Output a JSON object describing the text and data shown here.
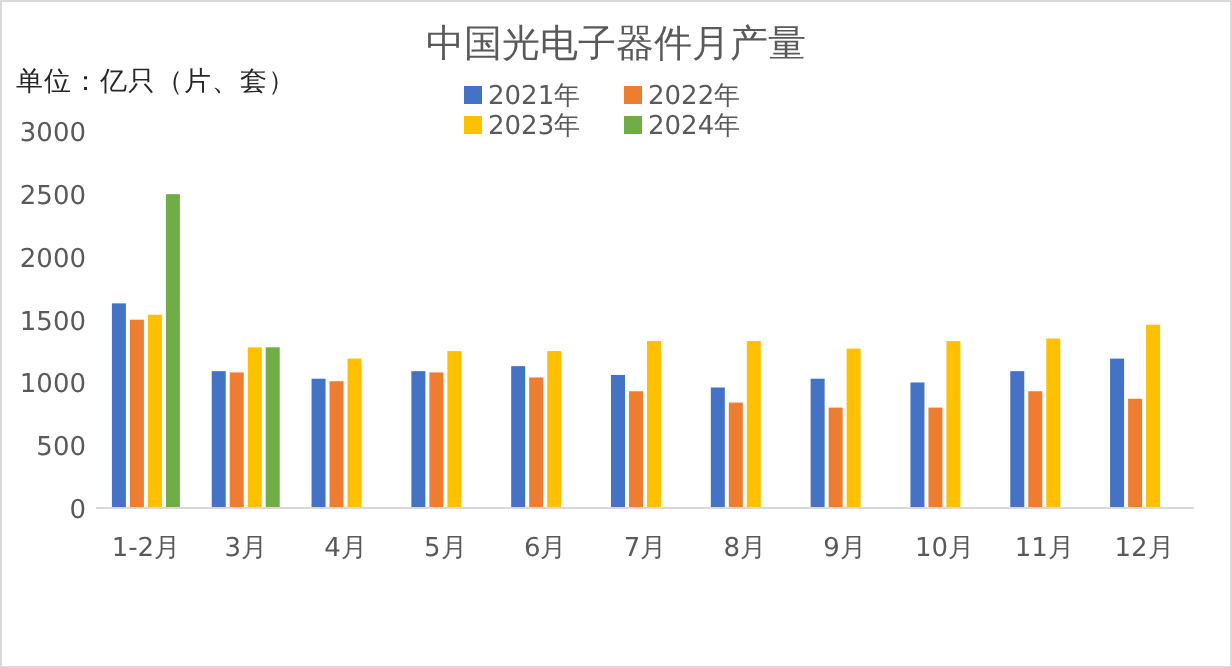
{
  "chart_data": {
    "type": "bar",
    "title": "中国光电子器件月产量",
    "ylabel": "单位：亿只（片、套）",
    "categories": [
      "1-2月",
      "3月",
      "4月",
      "5月",
      "6月",
      "7月",
      "8月",
      "9月",
      "10月",
      "11月",
      "12月"
    ],
    "series": [
      {
        "name": "2021年",
        "color": "#4472c4",
        "values": [
          1630,
          1090,
          1030,
          1090,
          1130,
          1060,
          960,
          1030,
          1000,
          1090,
          1190
        ]
      },
      {
        "name": "2022年",
        "color": "#ed7d31",
        "values": [
          1500,
          1080,
          1010,
          1080,
          1040,
          930,
          840,
          800,
          800,
          930,
          870
        ]
      },
      {
        "name": "2023年",
        "color": "#ffc000",
        "values": [
          1540,
          1280,
          1190,
          1250,
          1250,
          1330,
          1330,
          1270,
          1330,
          1350,
          1460
        ]
      },
      {
        "name": "2024年",
        "color": "#70ad47",
        "values": [
          2500,
          1280,
          null,
          null,
          null,
          null,
          null,
          null,
          null,
          null,
          null
        ]
      }
    ],
    "ylim": [
      0,
      3000
    ],
    "yticks": [
      0,
      500,
      1000,
      1500,
      2000,
      2500,
      3000
    ],
    "grid": false,
    "legend": "top"
  }
}
